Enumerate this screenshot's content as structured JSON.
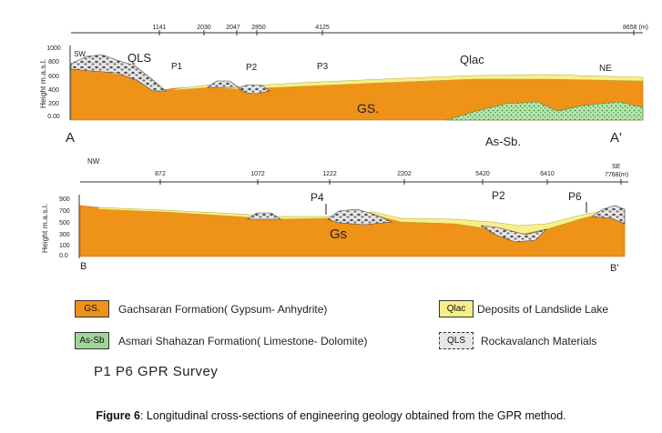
{
  "profile_top": {
    "distance_ticks": [
      "1141",
      "2030",
      "2047",
      "2850",
      "4125",
      "8658 (m)"
    ],
    "y_axis_label": "Height m.a.s.l.",
    "y_ticks": [
      "1000",
      "800",
      "600",
      "400",
      "200",
      "0.00"
    ],
    "start_dir": "SW",
    "end_dir": "NE",
    "start_point": "A",
    "end_point": "A'",
    "labels": {
      "qls": "QLS",
      "p1": "P1",
      "p2": "P2",
      "p3": "P3",
      "qlac": "Qlac",
      "gs": "GS.",
      "as_sb": "As-Sb."
    }
  },
  "profile_bottom": {
    "distance_ticks": [
      "872",
      "1072",
      "1222",
      "2202",
      "5420",
      "6410",
      "SE",
      "7768(m)"
    ],
    "y_axis_label": "Height m.a.s.l.",
    "y_ticks": [
      "900",
      "700",
      "500",
      "300",
      "100",
      "0.0"
    ],
    "start_dir": "NW",
    "start_point": "B",
    "end_point": "B'",
    "labels": {
      "p4": "P4",
      "p2": "P2",
      "p6": "P6",
      "gs": "Gs"
    }
  },
  "legend": {
    "gs_box": "GS.",
    "gs_text": "Gachsaran Formation( Gypsum- Anhydrite)",
    "as_box": "As-Sb",
    "as_text": "Asmari Shahazan Formation( Limestone- Dolomite)",
    "qlac_box": "Qlac",
    "qlac_text": "Deposits of Landslide Lake",
    "qls_box": "QLS",
    "qls_text": "Rockavalanch Materials"
  },
  "survey_text": "P1  P6 GPR Survey",
  "caption": {
    "figure_label": "Figure 6",
    "text": ": Longitudinal cross-sections of engineering geology obtained from the GPR method."
  },
  "colors": {
    "gachsaran": "#ef9218",
    "lake_deposits": "#f7ef8a",
    "asmari": "#9fd79b",
    "rock": "#c9c9c9"
  }
}
